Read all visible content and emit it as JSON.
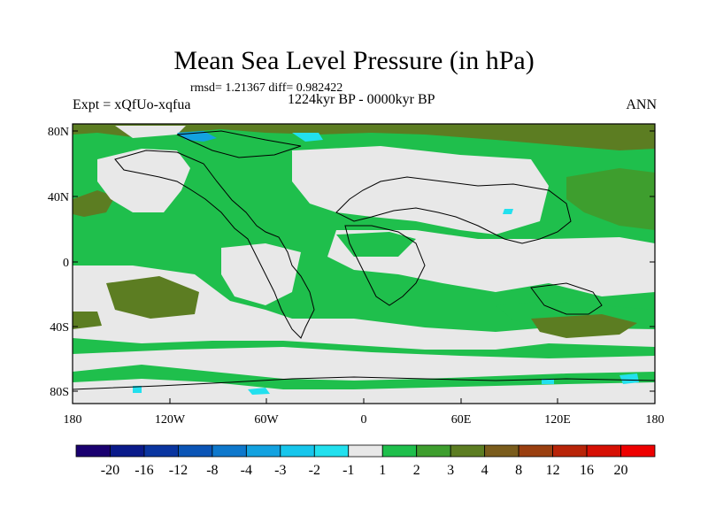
{
  "title": "Mean Sea Level Pressure (in hPa)",
  "stats": "rmsd= 1.21367 diff= 0.982422",
  "experiment": "Expt = xQfUo-xqfua",
  "period": "1224kyr BP - 0000kyr BP",
  "season": "ANN",
  "lat_ticks": [
    "80N",
    "40N",
    "0",
    "40S",
    "80S"
  ],
  "lon_ticks": [
    "180",
    "120W",
    "60W",
    "0",
    "60E",
    "120E",
    "180"
  ],
  "colorbar": {
    "labels": [
      "-20",
      "-16",
      "-12",
      "-8",
      "-4",
      "-3",
      "-2",
      "-1",
      "1",
      "2",
      "3",
      "4",
      "8",
      "12",
      "16",
      "20"
    ],
    "colors": [
      "#1a0070",
      "#0a1a8a",
      "#0a35a0",
      "#0b55b6",
      "#0e78cc",
      "#13a2e0",
      "#17c6ec",
      "#22e0ee",
      "#e8e8e8",
      "#1fbf4c",
      "#3e9e2e",
      "#5c7d22",
      "#7a5c1c",
      "#9a3f10",
      "#b82408",
      "#d61004",
      "#ee0000"
    ]
  },
  "palette": {
    "neutral": "#e8e8e8",
    "green": "#1fbf4c",
    "olive": "#3e9e2e",
    "brown": "#5c7d22",
    "cyan": "#22e0ee",
    "blue": "#13a2e0"
  }
}
